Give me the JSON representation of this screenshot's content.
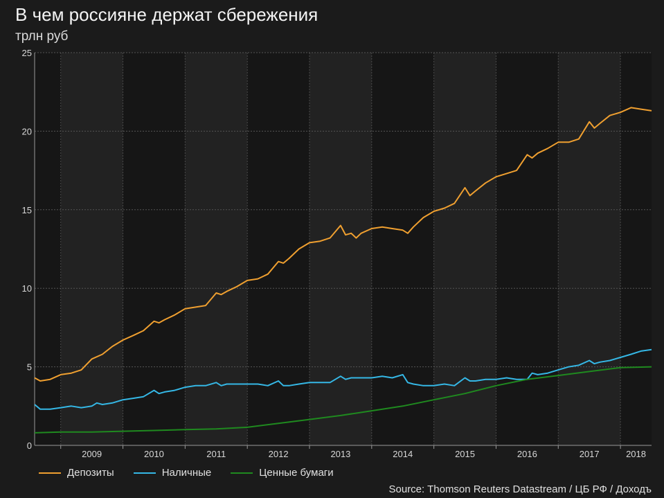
{
  "chart_data": {
    "type": "line",
    "title": "В чем россияне держат сбережения",
    "subtitle": "трлн руб",
    "source": "Source: Thomson Reuters Datastream / ЦБ РФ / Доходъ",
    "ylim": [
      0,
      25
    ],
    "yticks": [
      0,
      5,
      10,
      15,
      20,
      25
    ],
    "xlim": [
      2008.58,
      2018.5
    ],
    "xticks": [
      {
        "label": "2009",
        "x": 2009.0
      },
      {
        "label": "2010",
        "x": 2010.0
      },
      {
        "label": "2011",
        "x": 2011.0
      },
      {
        "label": "2012",
        "x": 2012.0
      },
      {
        "label": "2013",
        "x": 2013.0
      },
      {
        "label": "2014",
        "x": 2014.0
      },
      {
        "label": "2015",
        "x": 2015.0
      },
      {
        "label": "2016",
        "x": 2016.0
      },
      {
        "label": "2017",
        "x": 2017.0
      },
      {
        "label": "2018",
        "x": 2018.0
      }
    ],
    "grid": true,
    "legend_position": "bottom-left",
    "series": [
      {
        "name": "Депозиты",
        "color": "#f0a030",
        "x": [
          2008.58,
          2008.67,
          2008.83,
          2009.0,
          2009.17,
          2009.33,
          2009.5,
          2009.67,
          2009.83,
          2010.0,
          2010.17,
          2010.33,
          2010.5,
          2010.58,
          2010.67,
          2010.83,
          2011.0,
          2011.17,
          2011.33,
          2011.5,
          2011.58,
          2011.67,
          2011.83,
          2012.0,
          2012.17,
          2012.33,
          2012.5,
          2012.58,
          2012.67,
          2012.83,
          2013.0,
          2013.17,
          2013.33,
          2013.5,
          2013.58,
          2013.67,
          2013.75,
          2013.83,
          2014.0,
          2014.17,
          2014.33,
          2014.5,
          2014.58,
          2014.67,
          2014.83,
          2015.0,
          2015.17,
          2015.33,
          2015.5,
          2015.58,
          2015.67,
          2015.83,
          2016.0,
          2016.17,
          2016.33,
          2016.5,
          2016.58,
          2016.67,
          2016.83,
          2017.0,
          2017.17,
          2017.33,
          2017.5,
          2017.58,
          2017.67,
          2017.83,
          2018.0,
          2018.17,
          2018.33,
          2018.5
        ],
        "values": [
          4.3,
          4.1,
          4.2,
          4.5,
          4.6,
          4.8,
          5.5,
          5.8,
          6.3,
          6.7,
          7.0,
          7.3,
          7.9,
          7.8,
          8.0,
          8.3,
          8.7,
          8.8,
          8.9,
          9.7,
          9.6,
          9.8,
          10.1,
          10.5,
          10.6,
          10.9,
          11.7,
          11.6,
          11.9,
          12.5,
          12.9,
          13.0,
          13.2,
          14.0,
          13.4,
          13.5,
          13.2,
          13.5,
          13.8,
          13.9,
          13.8,
          13.7,
          13.5,
          13.9,
          14.5,
          14.9,
          15.1,
          15.4,
          16.4,
          15.9,
          16.2,
          16.7,
          17.1,
          17.3,
          17.5,
          18.5,
          18.3,
          18.6,
          18.9,
          19.3,
          19.3,
          19.5,
          20.6,
          20.2,
          20.5,
          21.0,
          21.2,
          21.5,
          21.4,
          21.3
        ]
      },
      {
        "name": "Наличные",
        "color": "#35b8e6",
        "x": [
          2008.58,
          2008.67,
          2008.83,
          2009.0,
          2009.17,
          2009.33,
          2009.5,
          2009.58,
          2009.67,
          2009.83,
          2010.0,
          2010.17,
          2010.33,
          2010.5,
          2010.58,
          2010.67,
          2010.83,
          2011.0,
          2011.17,
          2011.33,
          2011.5,
          2011.58,
          2011.67,
          2011.83,
          2012.0,
          2012.17,
          2012.33,
          2012.5,
          2012.58,
          2012.67,
          2012.83,
          2013.0,
          2013.17,
          2013.33,
          2013.5,
          2013.58,
          2013.67,
          2013.83,
          2014.0,
          2014.17,
          2014.33,
          2014.5,
          2014.58,
          2014.67,
          2014.83,
          2015.0,
          2015.17,
          2015.33,
          2015.5,
          2015.58,
          2015.67,
          2015.83,
          2016.0,
          2016.17,
          2016.33,
          2016.5,
          2016.58,
          2016.67,
          2016.83,
          2017.0,
          2017.17,
          2017.33,
          2017.5,
          2017.58,
          2017.67,
          2017.83,
          2018.0,
          2018.17,
          2018.33,
          2018.5
        ],
        "values": [
          2.6,
          2.3,
          2.3,
          2.4,
          2.5,
          2.4,
          2.5,
          2.7,
          2.6,
          2.7,
          2.9,
          3.0,
          3.1,
          3.5,
          3.3,
          3.4,
          3.5,
          3.7,
          3.8,
          3.8,
          4.0,
          3.8,
          3.9,
          3.9,
          3.9,
          3.9,
          3.8,
          4.1,
          3.8,
          3.8,
          3.9,
          4.0,
          4.0,
          4.0,
          4.4,
          4.2,
          4.3,
          4.3,
          4.3,
          4.4,
          4.3,
          4.5,
          4.0,
          3.9,
          3.8,
          3.8,
          3.9,
          3.8,
          4.3,
          4.1,
          4.1,
          4.2,
          4.2,
          4.3,
          4.2,
          4.2,
          4.6,
          4.5,
          4.6,
          4.8,
          5.0,
          5.1,
          5.4,
          5.2,
          5.3,
          5.4,
          5.6,
          5.8,
          6.0,
          6.1
        ]
      },
      {
        "name": "Ценные бумаги",
        "color": "#1f8a1f",
        "x": [
          2008.58,
          2009.0,
          2009.5,
          2010.0,
          2010.5,
          2011.0,
          2011.5,
          2012.0,
          2012.5,
          2013.0,
          2013.5,
          2014.0,
          2014.5,
          2015.0,
          2015.5,
          2016.0,
          2016.5,
          2017.0,
          2017.5,
          2018.0,
          2018.5
        ],
        "values": [
          0.8,
          0.85,
          0.85,
          0.9,
          0.95,
          1.0,
          1.05,
          1.15,
          1.4,
          1.65,
          1.9,
          2.2,
          2.5,
          2.9,
          3.3,
          3.8,
          4.2,
          4.45,
          4.7,
          4.95,
          5.0
        ]
      }
    ]
  }
}
